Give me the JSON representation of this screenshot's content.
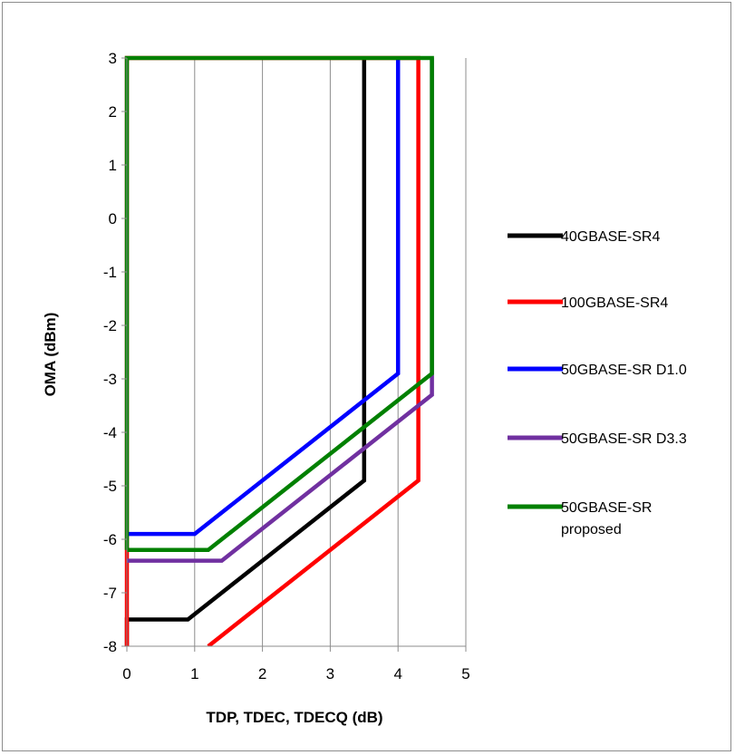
{
  "chart_data": {
    "type": "line",
    "xlabel": "TDP, TDEC, TDECQ (dB)",
    "ylabel": "OMA (dBm)",
    "xlim": [
      0,
      5
    ],
    "ylim": [
      -8,
      3
    ],
    "x_ticks": [
      0,
      1,
      2,
      3,
      4,
      5
    ],
    "y_ticks": [
      3,
      2,
      1,
      0,
      -1,
      -2,
      -3,
      -4,
      -5,
      -6,
      -7,
      -8
    ],
    "grid": "vertical",
    "legend_position": "right",
    "series": [
      {
        "name": "40GBASE-SR4",
        "color": "#000000",
        "points": [
          [
            0,
            -8
          ],
          [
            0,
            -7.5
          ],
          [
            0.9,
            -7.5
          ],
          [
            3.5,
            -4.9
          ],
          [
            3.5,
            3
          ]
        ]
      },
      {
        "name": "100GBASE-SR4",
        "color": "#ff0000",
        "points": [
          [
            0,
            -8
          ],
          [
            0,
            -6.3
          ],
          [
            0,
            3
          ],
          [
            4.3,
            3
          ],
          [
            4.3,
            -4.9
          ],
          [
            1.2,
            -8
          ]
        ]
      },
      {
        "name": "50GBASE-SR D1.0",
        "color": "#0000ff",
        "points": [
          [
            0,
            -5.9
          ],
          [
            1,
            -5.9
          ],
          [
            4,
            -2.9
          ],
          [
            4,
            3
          ]
        ]
      },
      {
        "name": "50GBASE-SR D3.3",
        "color": "#7030a0",
        "points": [
          [
            0,
            -6.4
          ],
          [
            1.4,
            -6.4
          ],
          [
            4.5,
            -3.3
          ],
          [
            4.5,
            3
          ]
        ]
      },
      {
        "name": "50GBASE-SR proposed",
        "legend_lines": [
          "50GBASE-SR",
          "proposed"
        ],
        "color": "#008000",
        "points": [
          [
            0,
            -6.2
          ],
          [
            0,
            3
          ],
          [
            4.5,
            3
          ],
          [
            4.5,
            -2.9
          ],
          [
            1.2,
            -6.2
          ],
          [
            0,
            -6.2
          ]
        ]
      }
    ]
  }
}
